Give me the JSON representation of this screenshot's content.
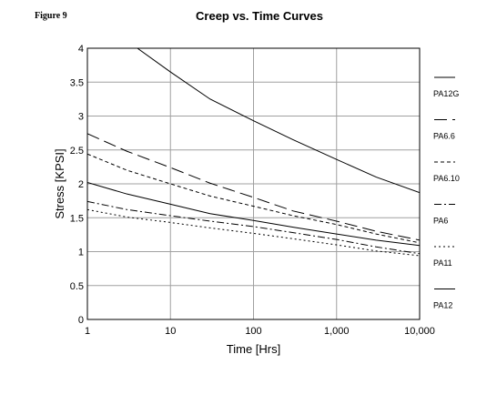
{
  "figure_label": "Figure 9",
  "chart_data": {
    "type": "line",
    "title": "Creep vs. Time Curves",
    "xlabel": "Time [Hrs]",
    "ylabel": "Stress [KPSI]",
    "x_scale": "log",
    "xlim": [
      1,
      10000
    ],
    "ylim": [
      0,
      4
    ],
    "x_ticks": [
      1,
      10,
      100,
      1000,
      10000
    ],
    "x_tick_labels": [
      "1",
      "10",
      "100",
      "1,000",
      "10,000"
    ],
    "y_ticks": [
      0,
      0.5,
      1,
      1.5,
      2,
      2.5,
      3,
      3.5,
      4
    ],
    "y_tick_labels": [
      "0",
      "0.5",
      "1",
      "1.5",
      "2",
      "2.5",
      "3",
      "3.5",
      "4"
    ],
    "grid": true,
    "legend_position": "right",
    "series": [
      {
        "name": "PA12G",
        "dash": "solid",
        "points": [
          [
            4,
            4.0
          ],
          [
            10,
            3.65
          ],
          [
            30,
            3.25
          ],
          [
            100,
            2.93
          ],
          [
            300,
            2.65
          ],
          [
            1000,
            2.36
          ],
          [
            3000,
            2.1
          ],
          [
            10000,
            1.87
          ]
        ]
      },
      {
        "name": "PA6.6",
        "dash": "longdash",
        "points": [
          [
            1,
            2.74
          ],
          [
            3,
            2.48
          ],
          [
            10,
            2.24
          ],
          [
            30,
            2.01
          ],
          [
            100,
            1.8
          ],
          [
            300,
            1.6
          ],
          [
            1000,
            1.45
          ],
          [
            3000,
            1.3
          ],
          [
            10000,
            1.17
          ]
        ]
      },
      {
        "name": "PA6.10",
        "dash": "shortdash",
        "points": [
          [
            1,
            2.44
          ],
          [
            3,
            2.2
          ],
          [
            10,
            2.0
          ],
          [
            30,
            1.82
          ],
          [
            100,
            1.67
          ],
          [
            300,
            1.53
          ],
          [
            1000,
            1.4
          ],
          [
            3000,
            1.26
          ],
          [
            10000,
            1.13
          ]
        ]
      },
      {
        "name": "PA6",
        "dash": "dashdot",
        "points": [
          [
            1,
            1.74
          ],
          [
            3,
            1.62
          ],
          [
            10,
            1.53
          ],
          [
            30,
            1.45
          ],
          [
            100,
            1.37
          ],
          [
            300,
            1.28
          ],
          [
            1000,
            1.18
          ],
          [
            3000,
            1.07
          ],
          [
            10000,
            0.97
          ]
        ]
      },
      {
        "name": "PA11",
        "dash": "dotted",
        "points": [
          [
            1,
            1.62
          ],
          [
            3,
            1.51
          ],
          [
            10,
            1.43
          ],
          [
            30,
            1.35
          ],
          [
            100,
            1.27
          ],
          [
            300,
            1.19
          ],
          [
            1000,
            1.1
          ],
          [
            3000,
            1.01
          ],
          [
            10000,
            0.94
          ]
        ]
      },
      {
        "name": "PA12",
        "dash": "solid",
        "points": [
          [
            1,
            2.02
          ],
          [
            3,
            1.85
          ],
          [
            10,
            1.7
          ],
          [
            30,
            1.56
          ],
          [
            100,
            1.46
          ],
          [
            300,
            1.36
          ],
          [
            1000,
            1.26
          ],
          [
            3000,
            1.17
          ],
          [
            10000,
            1.09
          ]
        ]
      }
    ]
  }
}
